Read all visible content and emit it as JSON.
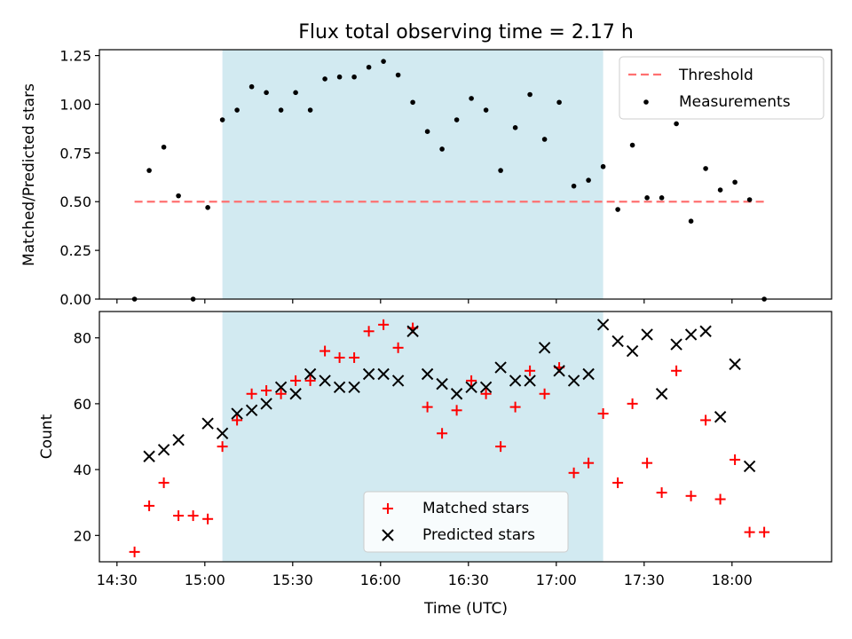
{
  "title": "Flux total observing time = 2.17 h",
  "chart_data": [
    {
      "type": "scatter",
      "ylabel": "Matched/Predicted stars",
      "xlim": [
        "14:24",
        "18:34"
      ],
      "ylim": [
        0,
        1.28
      ],
      "yticks": [
        "0.00",
        "0.25",
        "0.50",
        "0.75",
        "1.00",
        "1.25"
      ],
      "shaded_region": {
        "x": [
          "15:06",
          "17:16"
        ],
        "color": "#add8e6"
      },
      "threshold": {
        "name": "Threshold",
        "value": 0.5,
        "x": [
          "14:36",
          "18:11"
        ],
        "color": "#ff7070"
      },
      "legend_position": "top-right",
      "series": [
        {
          "name": "Measurements",
          "marker": "dot",
          "color": "#000000",
          "points": [
            [
              "14:36",
              0.0
            ],
            [
              "14:41",
              0.66
            ],
            [
              "14:46",
              0.78
            ],
            [
              "14:51",
              0.53
            ],
            [
              "14:56",
              0.0
            ],
            [
              "15:01",
              0.47
            ],
            [
              "15:06",
              0.92
            ],
            [
              "15:11",
              0.97
            ],
            [
              "15:16",
              1.09
            ],
            [
              "15:21",
              1.06
            ],
            [
              "15:26",
              0.97
            ],
            [
              "15:31",
              1.06
            ],
            [
              "15:36",
              0.97
            ],
            [
              "15:41",
              1.13
            ],
            [
              "15:46",
              1.14
            ],
            [
              "15:51",
              1.14
            ],
            [
              "15:56",
              1.19
            ],
            [
              "16:01",
              1.22
            ],
            [
              "16:06",
              1.15
            ],
            [
              "16:11",
              1.01
            ],
            [
              "16:16",
              0.86
            ],
            [
              "16:21",
              0.77
            ],
            [
              "16:26",
              0.92
            ],
            [
              "16:31",
              1.03
            ],
            [
              "16:36",
              0.97
            ],
            [
              "16:41",
              0.66
            ],
            [
              "16:46",
              0.88
            ],
            [
              "16:51",
              1.05
            ],
            [
              "16:56",
              0.82
            ],
            [
              "17:01",
              1.01
            ],
            [
              "17:06",
              0.58
            ],
            [
              "17:11",
              0.61
            ],
            [
              "17:16",
              0.68
            ],
            [
              "17:21",
              0.46
            ],
            [
              "17:26",
              0.79
            ],
            [
              "17:31",
              0.52
            ],
            [
              "17:36",
              0.52
            ],
            [
              "17:41",
              0.9
            ],
            [
              "17:46",
              0.4
            ],
            [
              "17:51",
              0.67
            ],
            [
              "17:56",
              0.56
            ],
            [
              "18:01",
              0.6
            ],
            [
              "18:06",
              0.51
            ],
            [
              "18:11",
              0.0
            ]
          ]
        }
      ]
    },
    {
      "type": "scatter",
      "xlabel": "Time (UTC)",
      "ylabel": "Count",
      "xlim": [
        "14:24",
        "18:34"
      ],
      "ylim": [
        12,
        88
      ],
      "yticks": [
        "20",
        "40",
        "60",
        "80"
      ],
      "xticks": [
        "14:30",
        "15:00",
        "15:30",
        "16:00",
        "16:30",
        "17:00",
        "17:30",
        "18:00"
      ],
      "shaded_region": {
        "x": [
          "15:06",
          "17:16"
        ],
        "color": "#add8e6"
      },
      "legend_position": "lower-center",
      "series": [
        {
          "name": "Matched stars",
          "marker": "plus",
          "color": "#ff0000",
          "points": [
            [
              "14:36",
              15
            ],
            [
              "14:41",
              29
            ],
            [
              "14:46",
              36
            ],
            [
              "14:51",
              26
            ],
            [
              "14:56",
              26
            ],
            [
              "15:01",
              25
            ],
            [
              "15:06",
              47
            ],
            [
              "15:11",
              55
            ],
            [
              "15:16",
              63
            ],
            [
              "15:21",
              64
            ],
            [
              "15:26",
              63
            ],
            [
              "15:31",
              67
            ],
            [
              "15:36",
              67
            ],
            [
              "15:41",
              76
            ],
            [
              "15:46",
              74
            ],
            [
              "15:51",
              74
            ],
            [
              "15:56",
              82
            ],
            [
              "16:01",
              84
            ],
            [
              "16:06",
              77
            ],
            [
              "16:11",
              83
            ],
            [
              "16:16",
              59
            ],
            [
              "16:21",
              51
            ],
            [
              "16:26",
              58
            ],
            [
              "16:31",
              67
            ],
            [
              "16:36",
              63
            ],
            [
              "16:41",
              47
            ],
            [
              "16:46",
              59
            ],
            [
              "16:51",
              70
            ],
            [
              "16:56",
              63
            ],
            [
              "17:01",
              71
            ],
            [
              "17:06",
              39
            ],
            [
              "17:11",
              42
            ],
            [
              "17:16",
              57
            ],
            [
              "17:21",
              36
            ],
            [
              "17:26",
              60
            ],
            [
              "17:31",
              42
            ],
            [
              "17:36",
              33
            ],
            [
              "17:41",
              70
            ],
            [
              "17:46",
              32
            ],
            [
              "17:51",
              55
            ],
            [
              "17:56",
              31
            ],
            [
              "18:01",
              43
            ],
            [
              "18:06",
              21
            ],
            [
              "18:11",
              21
            ]
          ]
        },
        {
          "name": "Predicted stars",
          "marker": "x",
          "color": "#000000",
          "points": [
            [
              "14:41",
              44
            ],
            [
              "14:46",
              46
            ],
            [
              "14:51",
              49
            ],
            [
              "15:01",
              54
            ],
            [
              "15:06",
              51
            ],
            [
              "15:11",
              57
            ],
            [
              "15:16",
              58
            ],
            [
              "15:21",
              60
            ],
            [
              "15:26",
              65
            ],
            [
              "15:31",
              63
            ],
            [
              "15:36",
              69
            ],
            [
              "15:41",
              67
            ],
            [
              "15:46",
              65
            ],
            [
              "15:51",
              65
            ],
            [
              "15:56",
              69
            ],
            [
              "16:01",
              69
            ],
            [
              "16:06",
              67
            ],
            [
              "16:11",
              82
            ],
            [
              "16:16",
              69
            ],
            [
              "16:21",
              66
            ],
            [
              "16:26",
              63
            ],
            [
              "16:31",
              65
            ],
            [
              "16:36",
              65
            ],
            [
              "16:41",
              71
            ],
            [
              "16:46",
              67
            ],
            [
              "16:51",
              67
            ],
            [
              "16:56",
              77
            ],
            [
              "17:01",
              70
            ],
            [
              "17:06",
              67
            ],
            [
              "17:11",
              69
            ],
            [
              "17:16",
              84
            ],
            [
              "17:21",
              79
            ],
            [
              "17:26",
              76
            ],
            [
              "17:31",
              81
            ],
            [
              "17:36",
              63
            ],
            [
              "17:41",
              78
            ],
            [
              "17:46",
              81
            ],
            [
              "17:51",
              82
            ],
            [
              "17:56",
              56
            ],
            [
              "18:01",
              72
            ],
            [
              "18:06",
              41
            ]
          ]
        }
      ]
    }
  ]
}
